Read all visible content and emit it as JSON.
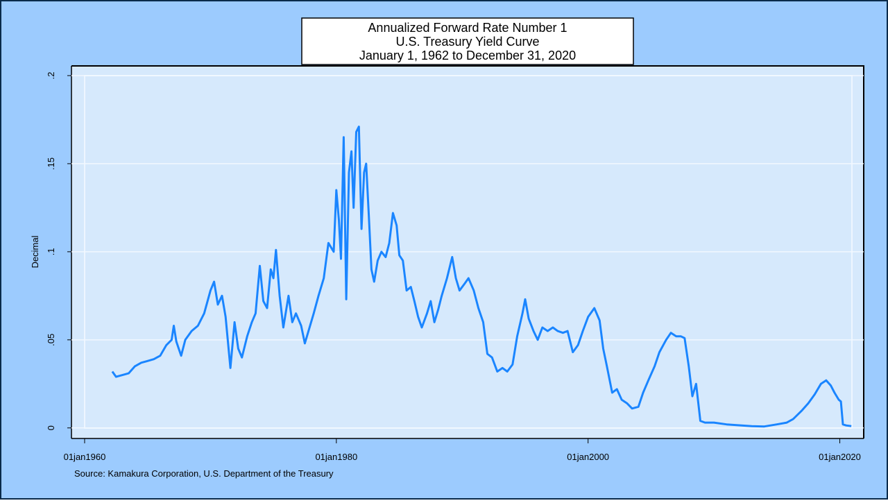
{
  "chart_data": {
    "type": "line",
    "title": [
      "Annualized Forward Rate Number 1",
      "U.S. Treasury Yield Curve",
      "January 1, 1962 to December 31, 2020"
    ],
    "y_label": "Decimal",
    "note": "Source: Kamakura Corporation, U.S. Department of the Treasury",
    "xlim": [
      "1958-12-15",
      "2021-11-25"
    ],
    "ylim": [
      -0.006,
      0.2055
    ],
    "xticks": [
      {
        "value": "1960-01-01",
        "label": "01jan1960"
      },
      {
        "value": "1980-01-01",
        "label": "01jan1980"
      },
      {
        "value": "2000-01-01",
        "label": "01jan2000"
      },
      {
        "value": "2020-01-01",
        "label": "01jan2020"
      }
    ],
    "yticks": [
      0,
      {
        "value": 0.05,
        "label": ".05"
      },
      {
        "value": 0.1,
        "label": ".1"
      },
      {
        "value": 0.15,
        "label": ".15"
      },
      {
        "value": 0.2,
        "label": ".2"
      }
    ],
    "grid": true,
    "x": [
      "1962-03-15",
      "1962-07-01",
      "1963-01-01",
      "1963-07-01",
      "1964-01-01",
      "1964-07-01",
      "1965-01-01",
      "1965-07-01",
      "1966-01-01",
      "1966-07-01",
      "1966-12-01",
      "1967-02-01",
      "1967-04-15",
      "1967-09-01",
      "1968-01-01",
      "1968-07-01",
      "1969-01-01",
      "1969-07-01",
      "1970-01-01",
      "1970-04-15",
      "1970-08-01",
      "1970-12-01",
      "1971-03-15",
      "1971-08-01",
      "1971-12-01",
      "1972-03-15",
      "1972-07-01",
      "1972-12-01",
      "1973-04-15",
      "1973-08-01",
      "1973-12-01",
      "1974-03-15",
      "1974-07-01",
      "1974-10-15",
      "1975-01-01",
      "1975-03-15",
      "1975-07-01",
      "1975-10-15",
      "1976-03-15",
      "1976-07-01",
      "1976-10-15",
      "1977-03-15",
      "1977-07-01",
      "1977-10-15",
      "1978-03-15",
      "1978-08-01",
      "1979-01-01",
      "1979-05-15",
      "1979-10-15",
      "1980-01-01",
      "1980-03-15",
      "1980-05-15",
      "1980-08-01",
      "1980-10-15",
      "1981-01-01",
      "1981-03-15",
      "1981-05-15",
      "1981-08-01",
      "1981-10-15",
      "1982-01-01",
      "1982-03-15",
      "1982-05-15",
      "1982-08-01",
      "1982-10-15",
      "1983-01-01",
      "1983-04-15",
      "1983-08-01",
      "1983-12-01",
      "1984-03-15",
      "1984-07-01",
      "1984-10-15",
      "1985-01-01",
      "1985-04-15",
      "1985-08-01",
      "1985-12-01",
      "1986-03-15",
      "1986-07-01",
      "1986-10-15",
      "1987-03-15",
      "1987-07-01",
      "1987-10-15",
      "1988-02-01",
      "1988-05-15",
      "1988-10-15",
      "1989-03-15",
      "1989-07-01",
      "1989-10-15",
      "1990-03-15",
      "1990-07-01",
      "1990-12-01",
      "1991-04-15",
      "1991-09-01",
      "1992-01-01",
      "1992-05-15",
      "1992-10-15",
      "1993-03-15",
      "1993-08-01",
      "1994-01-01",
      "1994-05-15",
      "1994-10-15",
      "1995-01-01",
      "1995-04-15",
      "1995-09-01",
      "1996-01-01",
      "1996-05-15",
      "1996-10-15",
      "1997-03-15",
      "1997-08-01",
      "1998-01-01",
      "1998-05-15",
      "1998-10-15",
      "1999-03-15",
      "1999-08-01",
      "2000-01-01",
      "2000-07-01",
      "2000-12-01",
      "2001-03-15",
      "2001-07-01",
      "2001-12-01",
      "2002-04-15",
      "2002-09-01",
      "2003-02-01",
      "2003-07-01",
      "2004-01-01",
      "2004-05-15",
      "2004-10-15",
      "2005-04-15",
      "2005-09-01",
      "2006-03-15",
      "2006-08-01",
      "2007-01-01",
      "2007-05-15",
      "2007-09-01",
      "2008-01-01",
      "2008-04-15",
      "2008-08-01",
      "2008-12-01",
      "2009-04-15",
      "2010-01-01",
      "2011-01-01",
      "2012-01-01",
      "2013-01-01",
      "2014-01-01",
      "2015-01-01",
      "2015-10-15",
      "2016-04-15",
      "2017-01-01",
      "2017-07-01",
      "2018-01-01",
      "2018-07-01",
      "2018-12-01",
      "2019-04-15",
      "2019-08-01",
      "2019-12-01",
      "2020-02-01",
      "2020-04-01",
      "2020-07-01",
      "2020-12-01"
    ],
    "series": [
      {
        "name": "Forward Rate",
        "color": "#1a85ff",
        "values": [
          0.032,
          0.029,
          0.03,
          0.031,
          0.035,
          0.037,
          0.038,
          0.039,
          0.041,
          0.047,
          0.05,
          0.058,
          0.049,
          0.041,
          0.05,
          0.055,
          0.058,
          0.065,
          0.078,
          0.083,
          0.07,
          0.075,
          0.063,
          0.034,
          0.06,
          0.045,
          0.04,
          0.052,
          0.06,
          0.065,
          0.092,
          0.072,
          0.068,
          0.09,
          0.085,
          0.101,
          0.075,
          0.057,
          0.075,
          0.06,
          0.065,
          0.058,
          0.048,
          0.055,
          0.065,
          0.075,
          0.085,
          0.105,
          0.1,
          0.135,
          0.118,
          0.096,
          0.165,
          0.073,
          0.145,
          0.157,
          0.125,
          0.168,
          0.171,
          0.113,
          0.145,
          0.15,
          0.12,
          0.09,
          0.083,
          0.095,
          0.1,
          0.097,
          0.105,
          0.122,
          0.115,
          0.098,
          0.095,
          0.078,
          0.08,
          0.072,
          0.063,
          0.057,
          0.065,
          0.072,
          0.06,
          0.067,
          0.075,
          0.085,
          0.097,
          0.085,
          0.078,
          0.082,
          0.085,
          0.078,
          0.068,
          0.06,
          0.042,
          0.04,
          0.032,
          0.034,
          0.032,
          0.036,
          0.052,
          0.065,
          0.073,
          0.062,
          0.055,
          0.05,
          0.057,
          0.055,
          0.057,
          0.055,
          0.054,
          0.055,
          0.043,
          0.047,
          0.055,
          0.063,
          0.068,
          0.061,
          0.045,
          0.035,
          0.02,
          0.022,
          0.016,
          0.014,
          0.011,
          0.012,
          0.02,
          0.027,
          0.035,
          0.043,
          0.05,
          0.054,
          0.052,
          0.052,
          0.051,
          0.035,
          0.018,
          0.025,
          0.004,
          0.003,
          0.003,
          0.002,
          0.0015,
          0.001,
          0.0008,
          0.002,
          0.003,
          0.005,
          0.01,
          0.014,
          0.019,
          0.025,
          0.027,
          0.024,
          0.02,
          0.016,
          0.015,
          0.002,
          0.0014,
          0.001
        ]
      }
    ]
  }
}
